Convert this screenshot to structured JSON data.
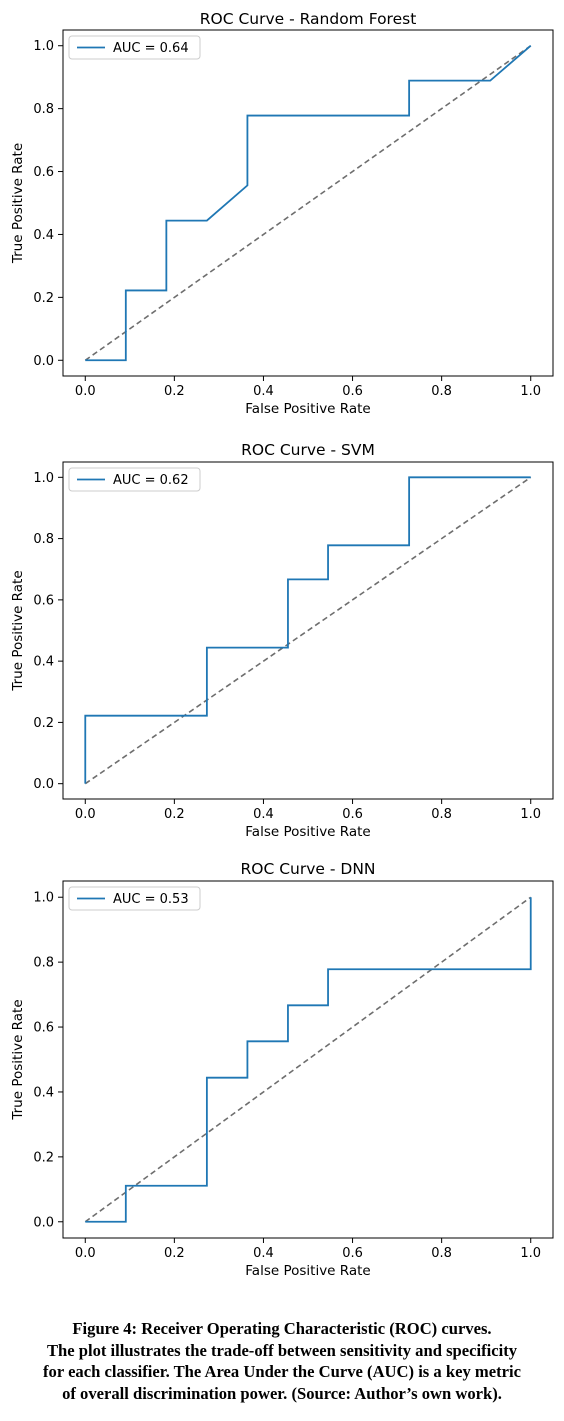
{
  "chart_data": [
    {
      "type": "line",
      "title": "ROC Curve - Random Forest",
      "xlabel": "False Positive Rate",
      "ylabel": "True Positive Rate",
      "xlim": [
        -0.05,
        1.05
      ],
      "ylim": [
        -0.05,
        1.05
      ],
      "xticks": [
        "0.0",
        "0.2",
        "0.4",
        "0.6",
        "0.8",
        "1.0"
      ],
      "yticks": [
        "0.0",
        "0.2",
        "0.4",
        "0.6",
        "0.8",
        "1.0"
      ],
      "grid": false,
      "legend": "upper-left",
      "colors": {
        "roc": "#1f77b4",
        "baseline": "#6e6e6e"
      },
      "series": [
        {
          "name": "AUC = 0.64",
          "x": [
            0.0,
            0.091,
            0.091,
            0.182,
            0.182,
            0.273,
            0.364,
            0.364,
            0.727,
            0.727,
            0.909,
            1.0
          ],
          "y": [
            0.0,
            0.0,
            0.222,
            0.222,
            0.444,
            0.444,
            0.556,
            0.778,
            0.778,
            0.889,
            0.889,
            1.0
          ]
        },
        {
          "x": [
            0,
            1
          ],
          "y": [
            0,
            1
          ],
          "style": "dashed"
        }
      ]
    },
    {
      "type": "line",
      "title": "ROC Curve - SVM",
      "xlabel": "False Positive Rate",
      "ylabel": "True Positive Rate",
      "xlim": [
        -0.05,
        1.05
      ],
      "ylim": [
        -0.05,
        1.05
      ],
      "xticks": [
        "0.0",
        "0.2",
        "0.4",
        "0.6",
        "0.8",
        "1.0"
      ],
      "yticks": [
        "0.0",
        "0.2",
        "0.4",
        "0.6",
        "0.8",
        "1.0"
      ],
      "grid": false,
      "legend": "upper-left",
      "colors": {
        "roc": "#1f77b4",
        "baseline": "#6e6e6e"
      },
      "series": [
        {
          "name": "AUC = 0.62",
          "x": [
            0.0,
            0.0,
            0.273,
            0.273,
            0.455,
            0.455,
            0.545,
            0.545,
            0.727,
            0.727,
            1.0
          ],
          "y": [
            0.0,
            0.222,
            0.222,
            0.444,
            0.444,
            0.667,
            0.667,
            0.778,
            0.778,
            1.0,
            1.0
          ]
        },
        {
          "x": [
            0,
            1
          ],
          "y": [
            0,
            1
          ],
          "style": "dashed"
        }
      ]
    },
    {
      "type": "line",
      "title": "ROC Curve - DNN",
      "xlabel": "False Positive Rate",
      "ylabel": "True Positive Rate",
      "xlim": [
        -0.05,
        1.05
      ],
      "ylim": [
        -0.05,
        1.05
      ],
      "xticks": [
        "0.0",
        "0.2",
        "0.4",
        "0.6",
        "0.8",
        "1.0"
      ],
      "yticks": [
        "0.0",
        "0.2",
        "0.4",
        "0.6",
        "0.8",
        "1.0"
      ],
      "grid": false,
      "legend": "upper-left",
      "colors": {
        "roc": "#1f77b4",
        "baseline": "#6e6e6e"
      },
      "series": [
        {
          "name": "AUC = 0.53",
          "x": [
            0.0,
            0.091,
            0.091,
            0.273,
            0.273,
            0.364,
            0.364,
            0.455,
            0.455,
            0.545,
            0.545,
            1.0,
            1.0
          ],
          "y": [
            0.0,
            0.0,
            0.111,
            0.111,
            0.444,
            0.444,
            0.556,
            0.556,
            0.667,
            0.667,
            0.778,
            0.778,
            1.0
          ]
        },
        {
          "x": [
            0,
            1
          ],
          "y": [
            0,
            1
          ],
          "style": "dashed"
        }
      ]
    }
  ],
  "caption": {
    "lines": [
      "Figure 4: Receiver Operating Characteristic (ROC) curves.",
      "The plot illustrates the trade-off between sensitivity and specificity",
      "for each classifier. The Area Under the Curve (AUC) is a key metric",
      "of overall discrimination power. (Source: Author’s own work)."
    ]
  }
}
